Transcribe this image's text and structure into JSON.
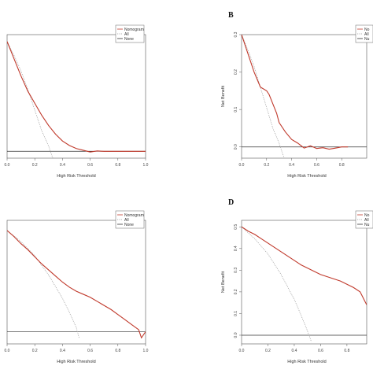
{
  "chart_data": [
    {
      "type": "line",
      "panel_label": "",
      "xlabel": "High Risk Threshold",
      "ylabel": "",
      "xlim": [
        0,
        1
      ],
      "ylim": [
        -0.02,
        0.34
      ],
      "xticks": [
        "0.0",
        "0.2",
        "0.4",
        "0.6",
        "0.8",
        "1.0"
      ],
      "yticks": [],
      "legend": [
        "Nomogram",
        "All",
        "None"
      ],
      "legend_position": "top-right",
      "series": [
        {
          "name": "Nomogram",
          "color": "#c0392b",
          "style": "solid",
          "x": [
            0,
            0.05,
            0.1,
            0.15,
            0.2,
            0.25,
            0.3,
            0.35,
            0.4,
            0.45,
            0.5,
            0.55,
            0.6,
            0.65,
            0.7,
            0.8,
            0.9,
            1.0
          ],
          "y": [
            0.32,
            0.27,
            0.22,
            0.175,
            0.14,
            0.105,
            0.075,
            0.05,
            0.03,
            0.017,
            0.008,
            0.003,
            -0.002,
            0.001,
            0,
            0,
            0,
            0
          ]
        },
        {
          "name": "All",
          "color": "#999999",
          "style": "dotted",
          "x": [
            0,
            0.05,
            0.1,
            0.15,
            0.2,
            0.25,
            0.3,
            0.33
          ],
          "y": [
            0.32,
            0.28,
            0.235,
            0.18,
            0.12,
            0.06,
            0.015,
            -0.02
          ]
        },
        {
          "name": "None",
          "color": "#333333",
          "style": "solid",
          "x": [
            0,
            1
          ],
          "y": [
            0,
            0
          ]
        }
      ]
    },
    {
      "type": "line",
      "panel_label": "B",
      "xlabel": "High Risk Threshold",
      "ylabel": "Net Benefit",
      "xlim": [
        0,
        1
      ],
      "ylim": [
        -0.03,
        0.3
      ],
      "xticks": [
        "0.0",
        "0.2",
        "0.4",
        "0.6",
        "0.8"
      ],
      "yticks": [
        "0.0",
        "0.1",
        "0.2",
        "0.3"
      ],
      "yticks_values": [
        0,
        0.1,
        0.2,
        0.3
      ],
      "legend": [
        "No",
        "All",
        "Nu"
      ],
      "legend_position": "top-right",
      "series": [
        {
          "name": "Nomogram",
          "color": "#c0392b",
          "style": "solid",
          "x": [
            0,
            0.05,
            0.1,
            0.15,
            0.2,
            0.22,
            0.25,
            0.28,
            0.3,
            0.35,
            0.4,
            0.45,
            0.5,
            0.55,
            0.6,
            0.65,
            0.7,
            0.75,
            0.8,
            0.85
          ],
          "y": [
            0.3,
            0.25,
            0.2,
            0.16,
            0.15,
            0.14,
            0.115,
            0.09,
            0.065,
            0.04,
            0.02,
            0.01,
            -0.003,
            0.003,
            -0.004,
            -0.002,
            -0.006,
            -0.003,
            0,
            0
          ]
        },
        {
          "name": "All",
          "color": "#999999",
          "style": "dotted",
          "x": [
            0,
            0.05,
            0.1,
            0.15,
            0.2,
            0.25,
            0.3,
            0.34
          ],
          "y": [
            0.3,
            0.26,
            0.215,
            0.16,
            0.105,
            0.05,
            0.01,
            -0.03
          ]
        },
        {
          "name": "None",
          "color": "#333333",
          "style": "solid",
          "x": [
            0,
            1
          ],
          "y": [
            0,
            0
          ]
        }
      ]
    },
    {
      "type": "line",
      "panel_label": "",
      "xlabel": "High Risk Threshold",
      "ylabel": "",
      "xlim": [
        0,
        1
      ],
      "ylim": [
        -0.06,
        0.55
      ],
      "xticks": [
        "0.0",
        "0.2",
        "0.4",
        "0.6",
        "0.8",
        "1.0"
      ],
      "yticks": [],
      "legend": [
        "Nomogram",
        "All",
        "None"
      ],
      "legend_position": "top-right",
      "series": [
        {
          "name": "Nomogram",
          "color": "#c0392b",
          "style": "solid",
          "x": [
            0,
            0.05,
            0.1,
            0.15,
            0.2,
            0.25,
            0.3,
            0.35,
            0.4,
            0.45,
            0.5,
            0.55,
            0.6,
            0.65,
            0.7,
            0.75,
            0.8,
            0.85,
            0.9,
            0.95,
            0.97,
            1.0
          ],
          "y": [
            0.5,
            0.47,
            0.435,
            0.405,
            0.37,
            0.335,
            0.305,
            0.275,
            0.245,
            0.22,
            0.2,
            0.185,
            0.17,
            0.15,
            0.13,
            0.11,
            0.085,
            0.06,
            0.035,
            0.01,
            -0.03,
            0.0
          ]
        },
        {
          "name": "All",
          "color": "#999999",
          "style": "dotted",
          "x": [
            0,
            0.1,
            0.2,
            0.3,
            0.4,
            0.45,
            0.5,
            0.52
          ],
          "y": [
            0.5,
            0.445,
            0.375,
            0.28,
            0.165,
            0.095,
            0.02,
            -0.03
          ]
        },
        {
          "name": "None",
          "color": "#333333",
          "style": "solid",
          "x": [
            0,
            1
          ],
          "y": [
            0,
            0
          ]
        }
      ]
    },
    {
      "type": "line",
      "panel_label": "D",
      "xlabel": "High Risk Threshold",
      "ylabel": "Net Benefit",
      "xlim": [
        0,
        0.95
      ],
      "ylim": [
        -0.04,
        0.53
      ],
      "xticks": [
        "0.0",
        "0.2",
        "0.4",
        "0.6",
        "0.8"
      ],
      "yticks": [
        "0.0",
        "0.1",
        "0.2",
        "0.3",
        "0.4",
        "0.5"
      ],
      "yticks_values": [
        0,
        0.1,
        0.2,
        0.3,
        0.4,
        0.5
      ],
      "legend": [
        "No",
        "All",
        "Nu"
      ],
      "legend_position": "top-right",
      "series": [
        {
          "name": "Nomogram",
          "color": "#c0392b",
          "style": "solid",
          "x": [
            0,
            0.05,
            0.1,
            0.15,
            0.2,
            0.25,
            0.3,
            0.35,
            0.4,
            0.45,
            0.5,
            0.55,
            0.6,
            0.65,
            0.7,
            0.75,
            0.8,
            0.85,
            0.9,
            0.95
          ],
          "y": [
            0.5,
            0.48,
            0.465,
            0.445,
            0.425,
            0.405,
            0.385,
            0.365,
            0.345,
            0.325,
            0.31,
            0.295,
            0.28,
            0.27,
            0.26,
            0.25,
            0.235,
            0.22,
            0.2,
            0.14
          ]
        },
        {
          "name": "All",
          "color": "#999999",
          "style": "dotted",
          "x": [
            0,
            0.1,
            0.2,
            0.3,
            0.4,
            0.45,
            0.5,
            0.53
          ],
          "y": [
            0.5,
            0.445,
            0.375,
            0.28,
            0.165,
            0.095,
            0.02,
            -0.03
          ]
        },
        {
          "name": "None",
          "color": "#333333",
          "style": "solid",
          "x": [
            0,
            1
          ],
          "y": [
            0,
            0
          ]
        }
      ]
    }
  ]
}
